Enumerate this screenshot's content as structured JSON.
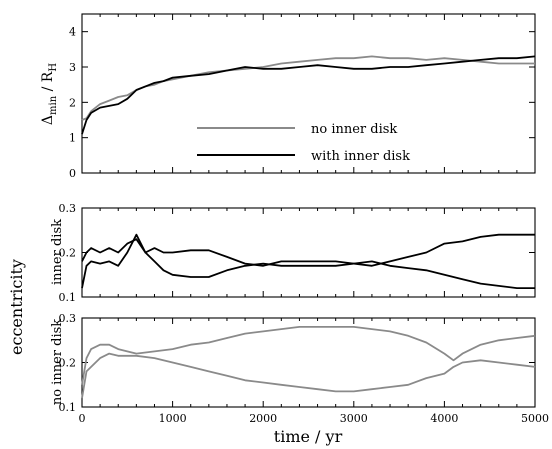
{
  "chart_data": [
    {
      "type": "line",
      "panel": "top",
      "ylabel": "Δmin / RH",
      "ylabel_main": "Δ",
      "ylabel_sub": "min",
      "ylabel_rest": " / R",
      "ylabel_sub2": "H",
      "xlim": [
        0,
        5000
      ],
      "ylim": [
        0,
        4.5
      ],
      "yticks": [
        0,
        1,
        2,
        3,
        4
      ],
      "legend_position": "center",
      "series": [
        {
          "name": "no inner disk",
          "color": "#8a8a8a",
          "x": [
            0,
            50,
            100,
            200,
            300,
            400,
            500,
            600,
            700,
            800,
            900,
            1000,
            1200,
            1400,
            1600,
            1800,
            2000,
            2200,
            2400,
            2600,
            2800,
            3000,
            3200,
            3400,
            3600,
            3800,
            4000,
            4200,
            4400,
            4600,
            4800,
            5000
          ],
          "y": [
            1.5,
            1.55,
            1.75,
            1.95,
            2.05,
            2.15,
            2.2,
            2.35,
            2.45,
            2.5,
            2.6,
            2.65,
            2.75,
            2.85,
            2.9,
            2.95,
            3.0,
            3.1,
            3.15,
            3.2,
            3.25,
            3.25,
            3.3,
            3.25,
            3.25,
            3.2,
            3.25,
            3.2,
            3.15,
            3.1,
            3.1,
            3.1
          ]
        },
        {
          "name": "with inner disk",
          "color": "#000000",
          "x": [
            0,
            50,
            100,
            200,
            300,
            400,
            500,
            600,
            700,
            800,
            900,
            1000,
            1200,
            1400,
            1600,
            1800,
            2000,
            2200,
            2400,
            2600,
            2800,
            3000,
            3200,
            3400,
            3600,
            3800,
            4000,
            4200,
            4400,
            4600,
            4800,
            5000
          ],
          "y": [
            1.1,
            1.5,
            1.7,
            1.85,
            1.9,
            1.95,
            2.1,
            2.35,
            2.45,
            2.55,
            2.6,
            2.7,
            2.75,
            2.8,
            2.9,
            3.0,
            2.95,
            2.95,
            3.0,
            3.05,
            3.0,
            2.95,
            2.95,
            3.0,
            3.0,
            3.05,
            3.1,
            3.15,
            3.2,
            3.25,
            3.25,
            3.3
          ]
        }
      ]
    },
    {
      "type": "line",
      "panel": "middle",
      "ylabel": "inner disk",
      "xlim": [
        0,
        5000
      ],
      "ylim": [
        0.1,
        0.3
      ],
      "yticks": [
        0.1,
        0.2,
        0.3
      ],
      "series": [
        {
          "color": "#000000",
          "x": [
            0,
            50,
            100,
            200,
            300,
            400,
            500,
            600,
            700,
            800,
            900,
            1000,
            1200,
            1400,
            1600,
            1800,
            2000,
            2200,
            2400,
            2600,
            2800,
            3000,
            3200,
            3400,
            3600,
            3800,
            4000,
            4200,
            4400,
            4600,
            4800,
            5000
          ],
          "y": [
            0.18,
            0.2,
            0.21,
            0.2,
            0.21,
            0.2,
            0.22,
            0.23,
            0.2,
            0.21,
            0.2,
            0.2,
            0.205,
            0.205,
            0.19,
            0.175,
            0.17,
            0.18,
            0.18,
            0.18,
            0.18,
            0.175,
            0.17,
            0.18,
            0.19,
            0.2,
            0.22,
            0.225,
            0.235,
            0.24,
            0.24,
            0.24
          ]
        },
        {
          "color": "#000000",
          "x": [
            0,
            50,
            100,
            200,
            300,
            400,
            500,
            600,
            700,
            800,
            900,
            1000,
            1200,
            1400,
            1600,
            1800,
            2000,
            2200,
            2400,
            2600,
            2800,
            3000,
            3200,
            3400,
            3600,
            3800,
            4000,
            4200,
            4400,
            4600,
            4800,
            5000
          ],
          "y": [
            0.12,
            0.17,
            0.18,
            0.175,
            0.18,
            0.17,
            0.2,
            0.24,
            0.2,
            0.18,
            0.16,
            0.15,
            0.145,
            0.145,
            0.16,
            0.17,
            0.175,
            0.17,
            0.17,
            0.17,
            0.17,
            0.175,
            0.18,
            0.17,
            0.165,
            0.16,
            0.15,
            0.14,
            0.13,
            0.125,
            0.12,
            0.12
          ]
        }
      ]
    },
    {
      "type": "line",
      "panel": "bottom",
      "ylabel": "no inner disk",
      "xlabel": "time / yr",
      "xlim": [
        0,
        5000
      ],
      "ylim": [
        0.1,
        0.3
      ],
      "yticks": [
        0.1,
        0.2,
        0.3
      ],
      "xticks": [
        0,
        1000,
        2000,
        3000,
        4000,
        5000
      ],
      "series": [
        {
          "color": "#8a8a8a",
          "x": [
            0,
            50,
            100,
            200,
            300,
            400,
            600,
            800,
            1000,
            1200,
            1400,
            1600,
            1800,
            2000,
            2200,
            2400,
            2600,
            2800,
            3000,
            3200,
            3400,
            3600,
            3800,
            4000,
            4100,
            4200,
            4400,
            4600,
            4800,
            5000
          ],
          "y": [
            0.15,
            0.21,
            0.23,
            0.24,
            0.24,
            0.23,
            0.22,
            0.225,
            0.23,
            0.24,
            0.245,
            0.255,
            0.265,
            0.27,
            0.275,
            0.28,
            0.28,
            0.28,
            0.28,
            0.275,
            0.27,
            0.26,
            0.245,
            0.22,
            0.205,
            0.22,
            0.24,
            0.25,
            0.255,
            0.26
          ]
        },
        {
          "color": "#8a8a8a",
          "x": [
            0,
            50,
            100,
            200,
            300,
            400,
            600,
            800,
            1000,
            1200,
            1400,
            1600,
            1800,
            2000,
            2200,
            2400,
            2600,
            2800,
            3000,
            3200,
            3400,
            3600,
            3800,
            4000,
            4100,
            4200,
            4400,
            4600,
            4800,
            5000
          ],
          "y": [
            0.12,
            0.18,
            0.19,
            0.21,
            0.22,
            0.215,
            0.215,
            0.21,
            0.2,
            0.19,
            0.18,
            0.17,
            0.16,
            0.155,
            0.15,
            0.145,
            0.14,
            0.135,
            0.135,
            0.14,
            0.145,
            0.15,
            0.165,
            0.175,
            0.19,
            0.2,
            0.205,
            0.2,
            0.195,
            0.19
          ]
        }
      ]
    }
  ],
  "shared_ylabel": "eccentricity",
  "legend": [
    "no inner disk",
    "with inner disk"
  ]
}
